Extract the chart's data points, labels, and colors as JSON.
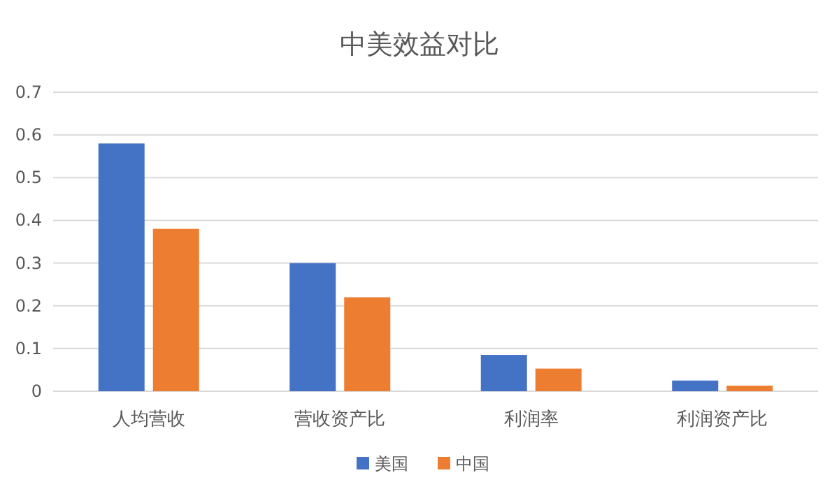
{
  "chart_data": {
    "type": "bar",
    "title": "中美效益对比",
    "categories": [
      "人均营收",
      "营收资产比",
      "利润率",
      "利润资产比"
    ],
    "series": [
      {
        "name": "美国",
        "color": "#4472c4",
        "values": [
          0.58,
          0.3,
          0.085,
          0.025
        ]
      },
      {
        "name": "中国",
        "color": "#ed7d31",
        "values": [
          0.38,
          0.22,
          0.053,
          0.013
        ]
      }
    ],
    "ylim": [
      0,
      0.7
    ],
    "yticks": [
      0,
      0.1,
      0.2,
      0.3,
      0.4,
      0.5,
      0.6,
      0.7
    ],
    "grid": "y",
    "legend": "bottom"
  }
}
